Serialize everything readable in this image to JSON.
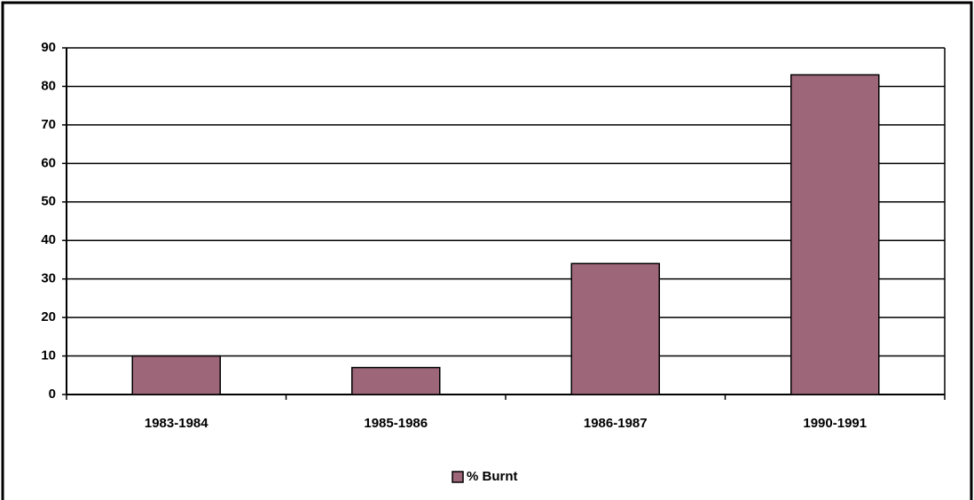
{
  "chart_data": {
    "type": "bar",
    "categories": [
      "1983-1984",
      "1985-1986",
      "1986-1987",
      "1990-1991"
    ],
    "series": [
      {
        "name": "% Burnt",
        "color": "#9e6679",
        "values": [
          10,
          7,
          34,
          83
        ]
      }
    ],
    "ylim": [
      0,
      90
    ],
    "yticks": [
      0,
      10,
      20,
      30,
      40,
      50,
      60,
      70,
      80,
      90
    ],
    "grid": true,
    "legend": "bottom"
  }
}
